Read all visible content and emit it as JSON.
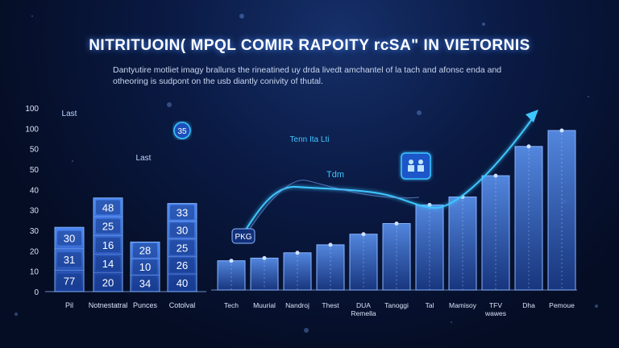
{
  "title": "NITRITUOIN( MPQL COMIR RAPOITY rcSA\" IN VIETORNIS",
  "subtitle": "Dantyutire motliet imagy bralluns the rineatined uy drda livedt amchantel of la tach and afonsc enda and otheoring is sudpont on the usb diantly conivity of thutal.",
  "colors": {
    "accent": "#3ec6ff",
    "bar": "#2f6fe0",
    "background": "#050d24"
  },
  "chart_data": [
    {
      "type": "bar",
      "title": "",
      "ylim": [
        0,
        100
      ],
      "yticks": [
        "100",
        "100",
        "50",
        "50",
        "40",
        "30",
        "30",
        "20",
        "10",
        "0"
      ],
      "categories": [
        "Pil",
        "Notnestatral",
        "Punces",
        "Cotolval"
      ],
      "values": [
        35,
        51,
        27,
        48
      ],
      "segment_labels": [
        [
          "77",
          "31",
          "30"
        ],
        [
          "20",
          "14",
          "16",
          "25",
          "48"
        ],
        [
          "34",
          "10",
          "28"
        ],
        [
          "40",
          "26",
          "25",
          "30",
          "33"
        ]
      ],
      "annotations": [
        "Last",
        "Last",
        "35"
      ]
    },
    {
      "type": "bar",
      "title": "",
      "categories": [
        "Tech",
        "Muurial",
        "Nandroj",
        "Thest",
        "DUA Remella",
        "Tanoggi",
        "Tal",
        "Mamisoy",
        "TFV wawes",
        "Dha",
        "Pemoue"
      ],
      "values": [
        11,
        12,
        14,
        17,
        21,
        25,
        32,
        35,
        43,
        54,
        60
      ],
      "trend_line": [
        24,
        22,
        40,
        28,
        30,
        36,
        62,
        70,
        80,
        88,
        110
      ],
      "annotations": [
        "Tenn Ita Lti",
        "Tdm",
        "PKG"
      ]
    }
  ]
}
